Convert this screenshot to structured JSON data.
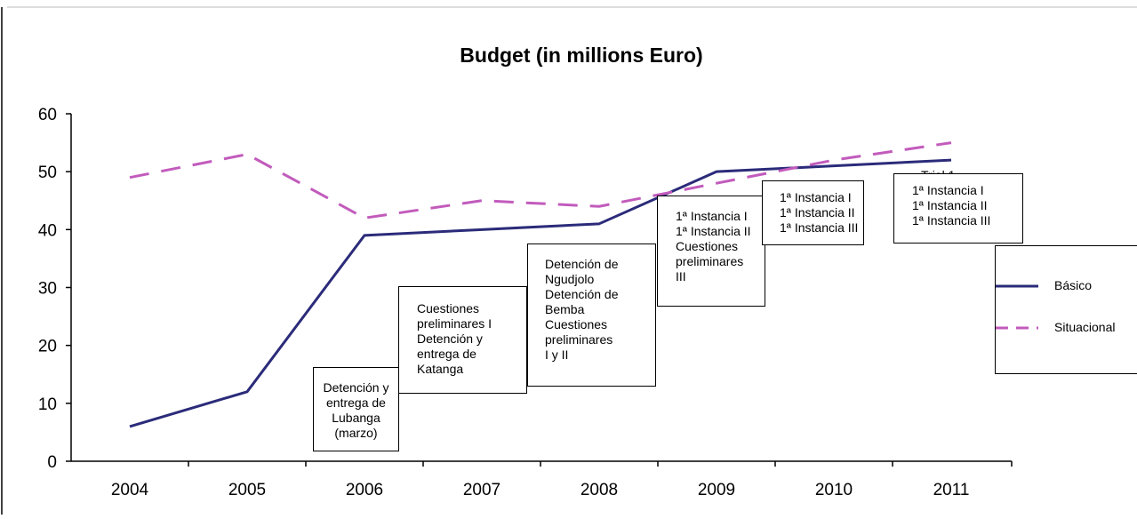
{
  "chart_data": {
    "type": "line",
    "title": "Budget (in millions Euro)",
    "xlabel": "",
    "ylabel": "",
    "categories": [
      "2004",
      "2005",
      "2006",
      "2007",
      "2008",
      "2009",
      "2010",
      "2011"
    ],
    "ylim": [
      0,
      60
    ],
    "yticks": [
      0,
      10,
      20,
      30,
      40,
      50,
      60
    ],
    "grid": false,
    "legend_position": "right",
    "series": [
      {
        "name": "Básico",
        "values": [
          6,
          12,
          39,
          40,
          41,
          50,
          51,
          52
        ],
        "color": "#2b2b7a",
        "style": "solid"
      },
      {
        "name": "Situacional",
        "values": [
          49,
          53,
          42,
          45,
          44,
          48,
          52,
          55
        ],
        "color": "#c25bbc",
        "style": "dashed"
      }
    ],
    "annotations": [
      {
        "category": "2006",
        "lines": [
          "Detención y",
          "entrega de",
          "Lubanga",
          "(marzo)"
        ]
      },
      {
        "category": "2007",
        "lines": [
          "Cuestiones",
          "preliminares I",
          "Detención y",
          "entrega de",
          "Katanga"
        ]
      },
      {
        "category": "2008",
        "lines": [
          "Detención de",
          "Ngudjolo",
          "Detención de",
          "Bemba",
          "Cuestiones",
          "preliminares",
          "I y II"
        ]
      },
      {
        "category": "2009",
        "lines": [
          "1ª Instancia I",
          "1ª Instancia II",
          "Cuestiones",
          "preliminares",
          "III"
        ]
      },
      {
        "category": "2010",
        "lines": [
          "1ª Instancia I",
          "1ª Instancia II",
          "1ª Instancia III"
        ]
      },
      {
        "category": "2011",
        "lines": [
          "1ª Instancia I",
          "1ª Instancia II",
          "1ª Instancia III"
        ]
      }
    ],
    "occluded_text": "Trial 1"
  }
}
